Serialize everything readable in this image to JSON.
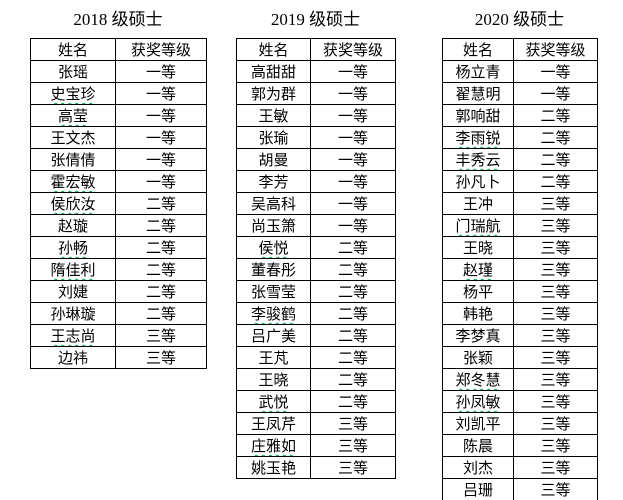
{
  "page": {
    "background": "#ffffff"
  },
  "colors": {
    "border": "#000000",
    "text": "#000000",
    "spellcheck_green": "#00b050"
  },
  "tables": [
    {
      "id": "2018",
      "title": "2018 级硕士",
      "headers": [
        "姓名",
        "获奖等级"
      ],
      "rows": [
        {
          "name": "张瑶",
          "award": "一等",
          "spellcheck_underline": false
        },
        {
          "name": "史宝珍",
          "award": "一等",
          "spellcheck_underline": true
        },
        {
          "name": "高莹",
          "award": "一等",
          "spellcheck_underline": true
        },
        {
          "name": "王文杰",
          "award": "一等",
          "spellcheck_underline": false
        },
        {
          "name": "张倩倩",
          "award": "一等",
          "spellcheck_underline": false
        },
        {
          "name": "霍宏敏",
          "award": "一等",
          "spellcheck_underline": true
        },
        {
          "name": "侯欣汝",
          "award": "二等",
          "spellcheck_underline": true
        },
        {
          "name": "赵璇",
          "award": "二等",
          "spellcheck_underline": false
        },
        {
          "name": "孙畅",
          "award": "二等",
          "spellcheck_underline": true
        },
        {
          "name": "隋佳利",
          "award": "二等",
          "spellcheck_underline": true
        },
        {
          "name": "刘婕",
          "award": "二等",
          "spellcheck_underline": false
        },
        {
          "name": "孙琳璇",
          "award": "二等",
          "spellcheck_underline": false
        },
        {
          "name": "王志尚",
          "award": "三等",
          "spellcheck_underline": true
        },
        {
          "name": "边祎",
          "award": "三等",
          "spellcheck_underline": false
        }
      ]
    },
    {
      "id": "2019",
      "title": "2019 级硕士",
      "headers": [
        "姓名",
        "获奖等级"
      ],
      "rows": [
        {
          "name": "高甜甜",
          "award": "一等",
          "spellcheck_underline": false
        },
        {
          "name": "郭为群",
          "award": "一等",
          "spellcheck_underline": false
        },
        {
          "name": "王敏",
          "award": "一等",
          "spellcheck_underline": false
        },
        {
          "name": "张瑜",
          "award": "一等",
          "spellcheck_underline": false
        },
        {
          "name": "胡曼",
          "award": "一等",
          "spellcheck_underline": false
        },
        {
          "name": "李芳",
          "award": "一等",
          "spellcheck_underline": false
        },
        {
          "name": "吴高科",
          "award": "一等",
          "spellcheck_underline": false
        },
        {
          "name": "尚玉箫",
          "award": "一等",
          "spellcheck_underline": false
        },
        {
          "name": "侯悦",
          "award": "二等",
          "spellcheck_underline": true
        },
        {
          "name": "董春彤",
          "award": "二等",
          "spellcheck_underline": false
        },
        {
          "name": "张雪莹",
          "award": "二等",
          "spellcheck_underline": false
        },
        {
          "name": "李骏鹤",
          "award": "二等",
          "spellcheck_underline": true
        },
        {
          "name": "吕广美",
          "award": "二等",
          "spellcheck_underline": false
        },
        {
          "name": "王芃",
          "award": "二等",
          "spellcheck_underline": false
        },
        {
          "name": "王晓",
          "award": "二等",
          "spellcheck_underline": false
        },
        {
          "name": "武悦",
          "award": "二等",
          "spellcheck_underline": true
        },
        {
          "name": "王凤芹",
          "award": "三等",
          "spellcheck_underline": false
        },
        {
          "name": "庄雅如",
          "award": "三等",
          "spellcheck_underline": true
        },
        {
          "name": "姚玉艳",
          "award": "三等",
          "spellcheck_underline": false
        }
      ]
    },
    {
      "id": "2020",
      "title": "2020 级硕士",
      "headers": [
        "姓名",
        "获奖等级"
      ],
      "rows": [
        {
          "name": "杨立青",
          "award": "一等",
          "spellcheck_underline": false
        },
        {
          "name": "翟慧明",
          "award": "一等",
          "spellcheck_underline": false
        },
        {
          "name": "郭响甜",
          "award": "二等",
          "spellcheck_underline": false
        },
        {
          "name": "李雨锐",
          "award": "二等",
          "spellcheck_underline": true
        },
        {
          "name": "丰秀云",
          "award": "二等",
          "spellcheck_underline": true
        },
        {
          "name": "孙凡卜",
          "award": "二等",
          "spellcheck_underline": false
        },
        {
          "name": "王冲",
          "award": "三等",
          "spellcheck_underline": false
        },
        {
          "name": "门瑞航",
          "award": "三等",
          "spellcheck_underline": true
        },
        {
          "name": "王晓",
          "award": "三等",
          "spellcheck_underline": false
        },
        {
          "name": "赵瑾",
          "award": "三等",
          "spellcheck_underline": true
        },
        {
          "name": "杨平",
          "award": "三等",
          "spellcheck_underline": false
        },
        {
          "name": "韩艳",
          "award": "三等",
          "spellcheck_underline": false
        },
        {
          "name": "李梦真",
          "award": "三等",
          "spellcheck_underline": false
        },
        {
          "name": "张颖",
          "award": "三等",
          "spellcheck_underline": false
        },
        {
          "name": "郑冬慧",
          "award": "三等",
          "spellcheck_underline": true
        },
        {
          "name": "孙凤敏",
          "award": "三等",
          "spellcheck_underline": true
        },
        {
          "name": "刘凯平",
          "award": "三等",
          "spellcheck_underline": false
        },
        {
          "name": "陈晨",
          "award": "三等",
          "spellcheck_underline": false
        },
        {
          "name": "刘杰",
          "award": "三等",
          "spellcheck_underline": false
        },
        {
          "name": "吕珊",
          "award": "三等",
          "spellcheck_underline": false
        }
      ]
    }
  ]
}
